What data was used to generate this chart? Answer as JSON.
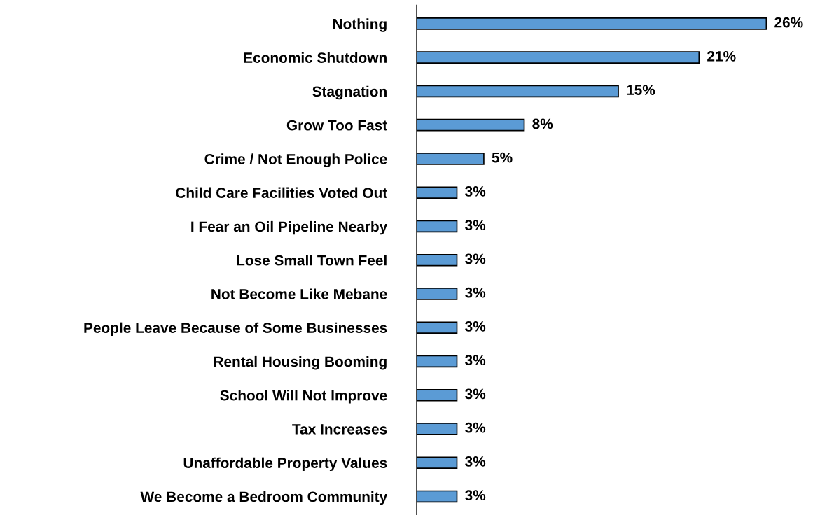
{
  "chart_data": {
    "type": "bar",
    "orientation": "horizontal",
    "categories": [
      "Nothing",
      "Economic Shutdown",
      "Stagnation",
      "Grow Too Fast",
      "Crime / Not Enough Police",
      "Child Care Facilities Voted Out",
      "I Fear an Oil Pipeline Nearby",
      "Lose Small Town Feel",
      "Not Become Like Mebane",
      "People Leave Because of Some Businesses",
      "Rental Housing Booming",
      "School Will Not Improve",
      "Tax Increases",
      "Unaffordable Property Values",
      "We Become a Bedroom Community"
    ],
    "values": [
      26,
      21,
      15,
      8,
      5,
      3,
      3,
      3,
      3,
      3,
      3,
      3,
      3,
      3,
      3
    ],
    "value_labels": [
      "26%",
      "21%",
      "15%",
      "8%",
      "5%",
      "3%",
      "3%",
      "3%",
      "3%",
      "3%",
      "3%",
      "3%",
      "3%",
      "3%",
      "3%"
    ],
    "color": "#5b9bd5",
    "grid": false,
    "legend": false
  }
}
